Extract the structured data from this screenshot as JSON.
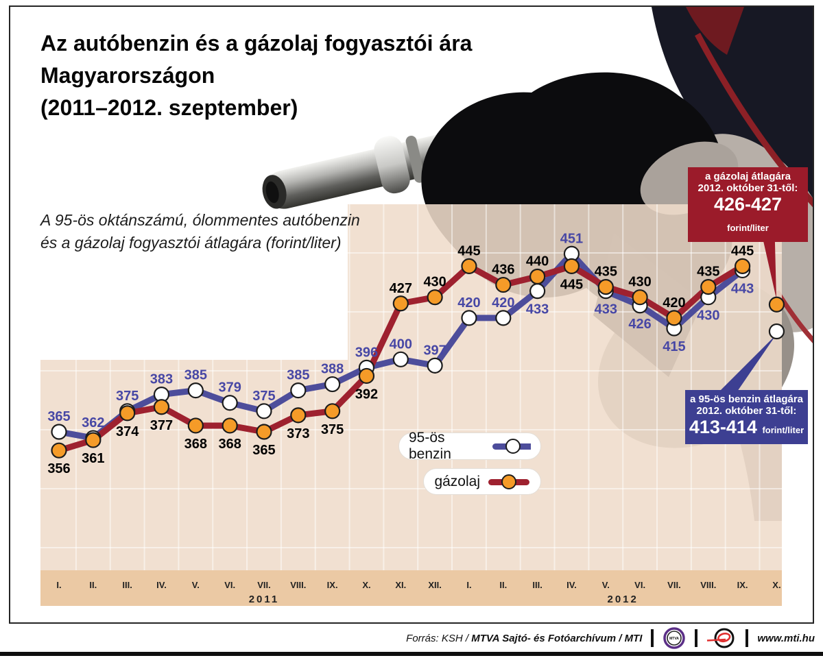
{
  "title": {
    "line1": "Az autóbenzin és a gázolaj fogyasztói ára",
    "line2": "Magyarországon",
    "line3": "(2011–2012. szeptember)"
  },
  "subtitle": {
    "line1": "A 95-ös oktánszámú, ólommentes autóbenzin",
    "line2": "és a gázolaj fogyasztói átlagára (forint/liter)"
  },
  "legend": {
    "benzin": "95-ös benzin",
    "diesel": "gázolaj"
  },
  "callouts": {
    "diesel": {
      "line1": "a gázolaj átlagára",
      "line2": "2012. október 31-től:",
      "value": "426-427",
      "unit": "forint/liter"
    },
    "benzin": {
      "line1": "a 95-ös benzin átlagára",
      "line2": "2012. október 31-től:",
      "value": "413-414",
      "unit": "forint/liter"
    }
  },
  "footer": {
    "source_prefix": "Forrás: KSH / ",
    "source_bold": "MTVA Sajtó- és Fotóarchívum / MTI",
    "mtva_logo_text": "MTVA",
    "website": "www.mti.hu"
  },
  "colors": {
    "benzin_line": "#4d4d9b",
    "benzin_label": "#4747a5",
    "diesel_line": "#9e212f",
    "diesel_marker": "#f59b28",
    "marker_outline": "#1c1c1c",
    "panel": "#efdccb",
    "axis_strip": "#ebc9a4",
    "grid": "#ffffff",
    "month_label": "#222222",
    "callout_diesel_bg": "#9b1b2a",
    "callout_benzin_bg": "#3d3f92"
  },
  "chart_data": {
    "type": "line",
    "ylabel": "forint/liter",
    "ylim": [
      345,
      470
    ],
    "grid": true,
    "legend_position": "center",
    "x_axis": {
      "groups": [
        {
          "year": "2011",
          "months": [
            "I.",
            "II.",
            "III.",
            "IV.",
            "V.",
            "VI.",
            "VII.",
            "VIII.",
            "IX.",
            "X.",
            "XI.",
            "XII."
          ]
        },
        {
          "year": "2012",
          "months": [
            "I.",
            "II.",
            "III.",
            "IV.",
            "V.",
            "VI.",
            "VII.",
            "VIII.",
            "IX.",
            "X."
          ]
        }
      ]
    },
    "series": [
      {
        "name": "95-ös benzin",
        "marker": "white-dot",
        "values": [
          365,
          362,
          375,
          383,
          385,
          379,
          375,
          385,
          388,
          396,
          400,
          397,
          420,
          420,
          433,
          451,
          433,
          426,
          415,
          430,
          443
        ],
        "label_side": [
          "a",
          "a",
          "a",
          "a",
          "a",
          "a",
          "a",
          "a",
          "a",
          "a",
          "a",
          "a",
          "a",
          "a",
          "b",
          "a",
          "b",
          "b",
          "b",
          "b",
          "b"
        ],
        "october_estimate": 413.5
      },
      {
        "name": "gázolaj",
        "marker": "orange-dot",
        "values": [
          356,
          361,
          374,
          377,
          368,
          368,
          365,
          373,
          375,
          392,
          427,
          430,
          445,
          436,
          440,
          445,
          435,
          430,
          420,
          435,
          445
        ],
        "label_side": [
          "b",
          "b",
          "b",
          "b",
          "b",
          "b",
          "b",
          "b",
          "b",
          "b",
          "a",
          "a",
          "a",
          "a",
          "a",
          "b",
          "a",
          "a",
          "a",
          "a",
          "a"
        ],
        "october_estimate": 426.5
      }
    ]
  }
}
